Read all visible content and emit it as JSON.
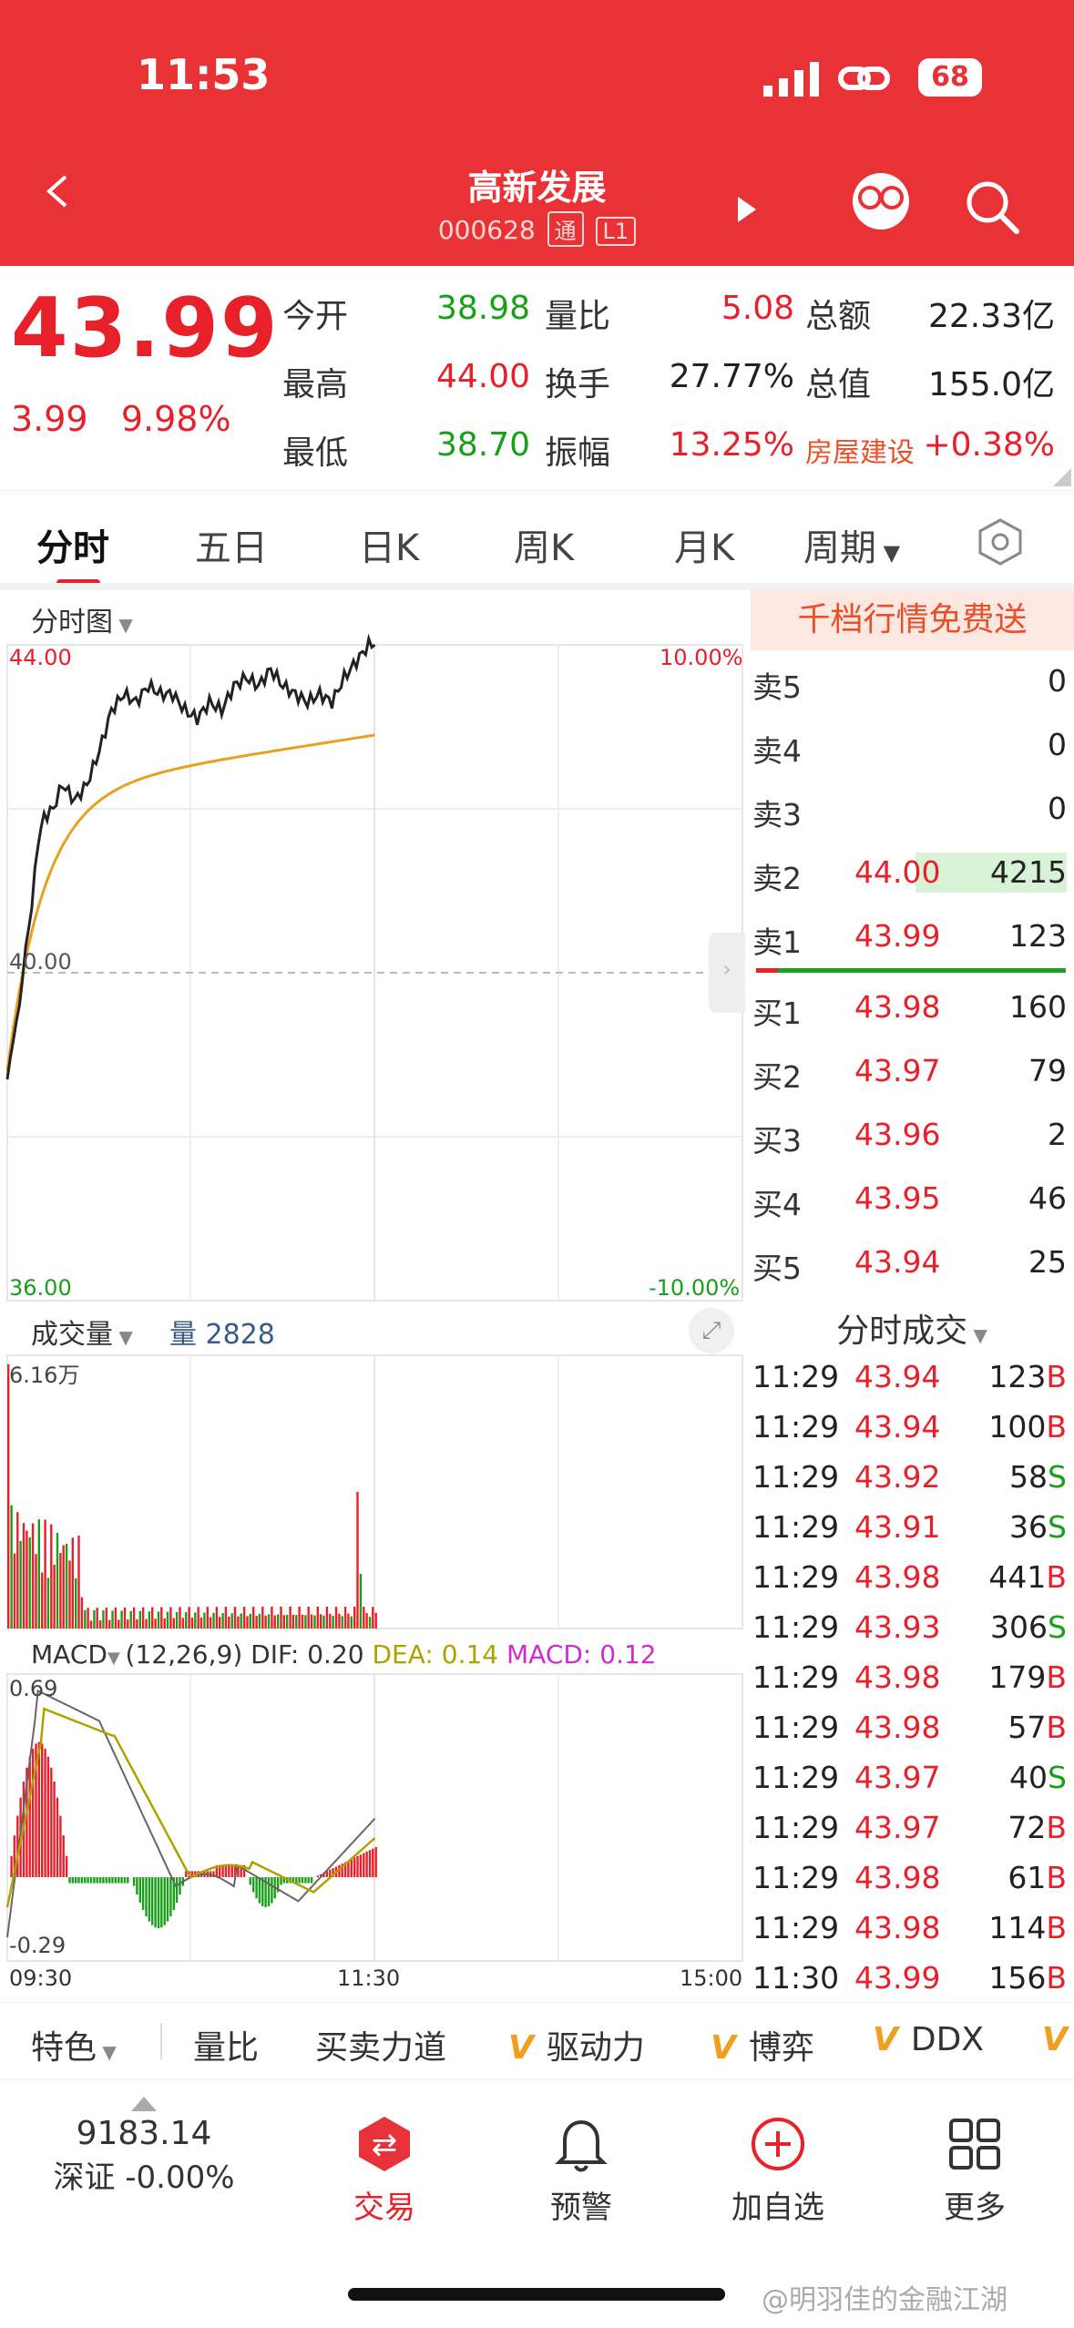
{
  "status": {
    "time": "11:53",
    "battery": "68"
  },
  "header": {
    "title": "高新发展",
    "code": "000628",
    "tag1": "通",
    "tag2": "L1"
  },
  "quote": {
    "price": "43.99",
    "change": "3.99",
    "change_pct": "9.98%",
    "rows": [
      [
        {
          "l": "今开",
          "v": "38.98",
          "c": "green"
        },
        {
          "l": "量比",
          "v": "5.08",
          "c": "red"
        },
        {
          "l": "总额",
          "v": "22.33亿",
          "c": "black"
        }
      ],
      [
        {
          "l": "最高",
          "v": "44.00",
          "c": "red"
        },
        {
          "l": "换手",
          "v": "27.77%",
          "c": "black"
        },
        {
          "l": "总值",
          "v": "155.0亿",
          "c": "black"
        }
      ],
      [
        {
          "l": "最低",
          "v": "38.70",
          "c": "green"
        },
        {
          "l": "振幅",
          "v": "13.25%",
          "c": "red"
        },
        {
          "l": "房屋建设",
          "v": "+0.38%",
          "c": "red"
        }
      ]
    ]
  },
  "tabs": [
    "分时",
    "五日",
    "日K",
    "周K",
    "月K",
    "周期"
  ],
  "intraday": {
    "label": "分时图",
    "top_price": "44.00",
    "mid_price": "40.00",
    "bottom_price": "36.00",
    "top_pct": "10.00%",
    "bottom_pct": "-10.00%",
    "volume_label": "成交量",
    "volume_value_label": "量 2828",
    "volume_max": "6.16万",
    "macd_label": "MACD",
    "macd_params": "(12,26,9)",
    "dif": "DIF: 0.20",
    "dea": "DEA: 0.14",
    "macd": "MACD: 0.12",
    "macd_top": "0.69",
    "macd_bottom": "-0.29",
    "time_start": "09:30",
    "time_mid": "11:30",
    "time_end": "15:00"
  },
  "orderbook": {
    "promo": "千档行情免费送",
    "asks": [
      {
        "n": "卖5",
        "p": "",
        "v": "0"
      },
      {
        "n": "卖4",
        "p": "",
        "v": "0"
      },
      {
        "n": "卖3",
        "p": "",
        "v": "0"
      },
      {
        "n": "卖2",
        "p": "44.00",
        "v": "4215",
        "fill": 0.48
      },
      {
        "n": "卖1",
        "p": "43.99",
        "v": "123",
        "fill": 0.0
      }
    ],
    "bids": [
      {
        "n": "买1",
        "p": "43.98",
        "v": "160"
      },
      {
        "n": "买2",
        "p": "43.97",
        "v": "79"
      },
      {
        "n": "买3",
        "p": "43.96",
        "v": "2"
      },
      {
        "n": "买4",
        "p": "43.95",
        "v": "46"
      },
      {
        "n": "买5",
        "p": "43.94",
        "v": "25"
      }
    ]
  },
  "trades": {
    "header": "分时成交",
    "rows": [
      {
        "t": "11:29",
        "p": "43.94",
        "v": "123",
        "s": "B"
      },
      {
        "t": "11:29",
        "p": "43.94",
        "v": "100",
        "s": "B"
      },
      {
        "t": "11:29",
        "p": "43.92",
        "v": "58",
        "s": "S"
      },
      {
        "t": "11:29",
        "p": "43.91",
        "v": "36",
        "s": "S"
      },
      {
        "t": "11:29",
        "p": "43.98",
        "v": "441",
        "s": "B"
      },
      {
        "t": "11:29",
        "p": "43.93",
        "v": "306",
        "s": "S"
      },
      {
        "t": "11:29",
        "p": "43.98",
        "v": "179",
        "s": "B"
      },
      {
        "t": "11:29",
        "p": "43.98",
        "v": "57",
        "s": "B"
      },
      {
        "t": "11:29",
        "p": "43.97",
        "v": "40",
        "s": "S"
      },
      {
        "t": "11:29",
        "p": "43.97",
        "v": "72",
        "s": "B"
      },
      {
        "t": "11:29",
        "p": "43.98",
        "v": "61",
        "s": "B"
      },
      {
        "t": "11:29",
        "p": "43.98",
        "v": "114",
        "s": "B"
      },
      {
        "t": "11:30",
        "p": "43.99",
        "v": "156",
        "s": "B"
      }
    ]
  },
  "indicators": {
    "first": "特色",
    "items": [
      "量比",
      "买卖力道",
      "驱动力",
      "博弈",
      "DDX"
    ]
  },
  "bottom_nav": {
    "index_value": "9183.14",
    "index_label": "深证 -0.00%",
    "items": [
      {
        "label": "交易",
        "icon": "trade-icon"
      },
      {
        "label": "预警",
        "icon": "bell-icon"
      },
      {
        "label": "加自选",
        "icon": "add-watchlist-icon"
      },
      {
        "label": "更多",
        "icon": "grid-icon"
      }
    ]
  },
  "watermark": "@明羽佳的金融江湖",
  "colors": {
    "header": "#e83236",
    "up": "#e8202a",
    "down": "#18a018",
    "avg_line": "#e8a020",
    "price_line": "#222222"
  }
}
